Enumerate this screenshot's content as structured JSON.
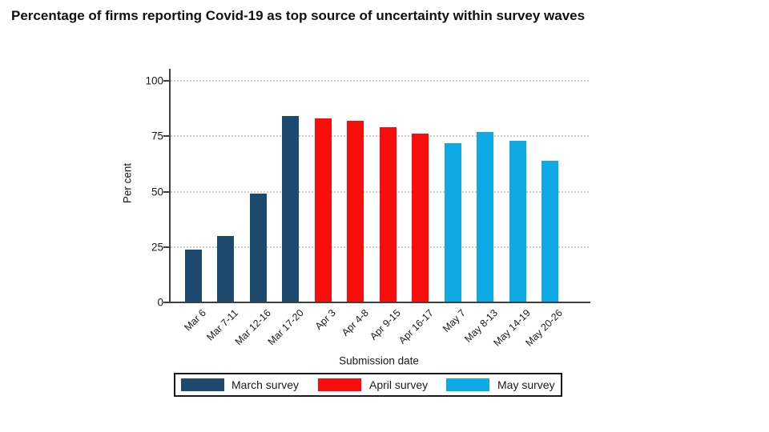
{
  "slide": {
    "title": "Percentage of firms reporting Covid-19 as top source of uncertainty within survey waves"
  },
  "chart_data": {
    "type": "bar",
    "title": "Percentage of firms reporting Covid-19 as top source of uncertainty within survey waves",
    "xlabel": "Submission date",
    "ylabel": "Per cent",
    "ylim": [
      0,
      100
    ],
    "yticks": [
      0,
      25,
      50,
      75,
      100
    ],
    "grid": "horizontal dotted",
    "legend_position": "bottom boxed",
    "categories": [
      "Mar 6",
      "Mar 7-11",
      "Mar 12-16",
      "Mar 17-20",
      "Apr 3",
      "Apr 4-8",
      "Apr 9-15",
      "Apr 16-17",
      "May 7",
      "May 8-13",
      "May 14-19",
      "May 20-26"
    ],
    "values": [
      24,
      30,
      49,
      84,
      83,
      82,
      79,
      76,
      72,
      77,
      73,
      64
    ],
    "series": [
      {
        "name": "March survey",
        "color": "#1c4a6e",
        "categories": [
          "Mar 6",
          "Mar 7-11",
          "Mar 12-16",
          "Mar 17-20"
        ],
        "values": [
          24,
          30,
          49,
          84
        ]
      },
      {
        "name": "April survey",
        "color": "#f90d0d",
        "categories": [
          "Apr 3",
          "Apr 4-8",
          "Apr 9-15",
          "Apr 16-17"
        ],
        "values": [
          83,
          82,
          79,
          76
        ]
      },
      {
        "name": "May survey",
        "color": "#0fa9e6",
        "categories": [
          "May 7",
          "May 8-13",
          "May 14-19",
          "May 20-26"
        ],
        "values": [
          72,
          77,
          73,
          64
        ]
      }
    ],
    "axis_color": "#3f3f3f",
    "grid_color": "#cccccc",
    "text_color": "#1a1a1a"
  }
}
